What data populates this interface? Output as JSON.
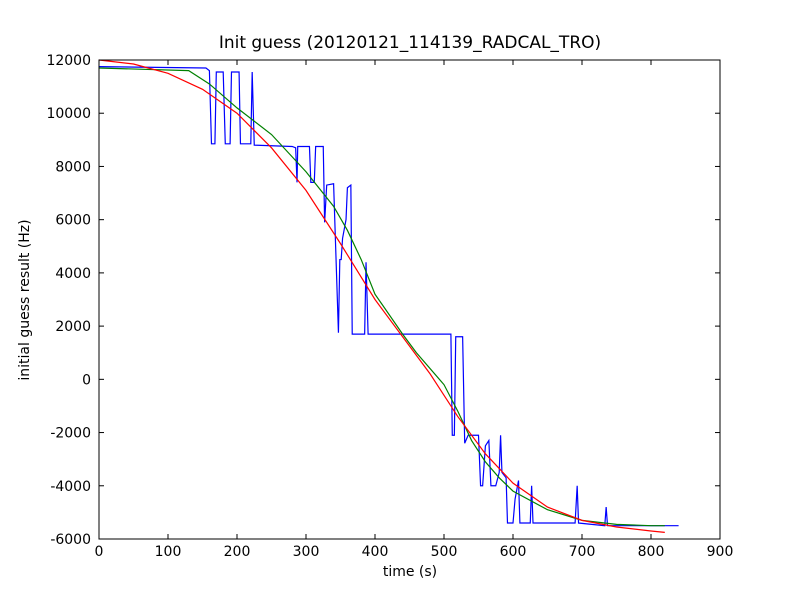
{
  "chart_data": {
    "type": "line",
    "title": "Init guess (20120121_114139_RADCAL_TRO)",
    "x_label": "time (s)",
    "y_label": "initial guess result (Hz)",
    "xlim": [
      0,
      900
    ],
    "ylim": [
      -6000,
      12000
    ],
    "xticks": [
      0,
      100,
      200,
      300,
      400,
      500,
      600,
      700,
      800,
      900
    ],
    "yticks": [
      -6000,
      -4000,
      -2000,
      0,
      2000,
      4000,
      6000,
      8000,
      10000,
      12000
    ],
    "grid": false,
    "series": [
      {
        "color": "#0000ff",
        "x": [
          0,
          155,
          160,
          163,
          168,
          170,
          180,
          183,
          190,
          192,
          203,
          205,
          220,
          222,
          225,
          280,
          285,
          287,
          288,
          305,
          307,
          312,
          314,
          325,
          327,
          330,
          340,
          347,
          349,
          351,
          353,
          358,
          360,
          365,
          367,
          385,
          387,
          390,
          510,
          512,
          515,
          517,
          527,
          530,
          535,
          550,
          553,
          556,
          560,
          565,
          568,
          575,
          580,
          582,
          584,
          590,
          592,
          600,
          603,
          608,
          610,
          625,
          627,
          629,
          690,
          693,
          695,
          733,
          735,
          737,
          840
        ],
        "values": [
          11750,
          11700,
          11600,
          8850,
          8850,
          11550,
          11550,
          8850,
          8850,
          11550,
          11550,
          8850,
          8850,
          11550,
          8800,
          8750,
          8700,
          7400,
          8750,
          8750,
          7400,
          7400,
          8750,
          8750,
          5900,
          7300,
          7350,
          1750,
          4500,
          4500,
          5300,
          6000,
          7200,
          7300,
          1700,
          1700,
          4400,
          1700,
          1700,
          -2100,
          -2100,
          1600,
          1600,
          -2400,
          -2100,
          -2100,
          -4000,
          -4000,
          -2500,
          -2300,
          -4000,
          -4000,
          -3500,
          -2100,
          -3500,
          -3700,
          -5400,
          -5400,
          -4500,
          -3800,
          -5400,
          -5400,
          -4000,
          -5400,
          -5400,
          -4000,
          -5400,
          -5500,
          -4800,
          -5500,
          -5500
        ]
      },
      {
        "color": "#008000",
        "x": [
          0,
          130,
          160,
          200,
          250,
          300,
          340,
          360,
          380,
          400,
          440,
          460,
          500,
          520,
          540,
          560,
          580,
          600,
          650,
          700,
          750,
          800,
          820
        ],
        "values": [
          11700,
          11600,
          11100,
          10200,
          9200,
          7800,
          6500,
          5600,
          4500,
          3200,
          1700,
          1000,
          -200,
          -1200,
          -2300,
          -3100,
          -3700,
          -4200,
          -4900,
          -5300,
          -5450,
          -5500,
          -5500
        ]
      },
      {
        "color": "#ff0000",
        "x": [
          0,
          50,
          100,
          150,
          200,
          250,
          300,
          350,
          400,
          440,
          480,
          520,
          560,
          600,
          650,
          700,
          750,
          800,
          820
        ],
        "values": [
          12000,
          11850,
          11500,
          10900,
          10000,
          8700,
          7100,
          5100,
          3000,
          1600,
          200,
          -1400,
          -2800,
          -3900,
          -4800,
          -5300,
          -5550,
          -5700,
          -5750
        ]
      }
    ]
  }
}
